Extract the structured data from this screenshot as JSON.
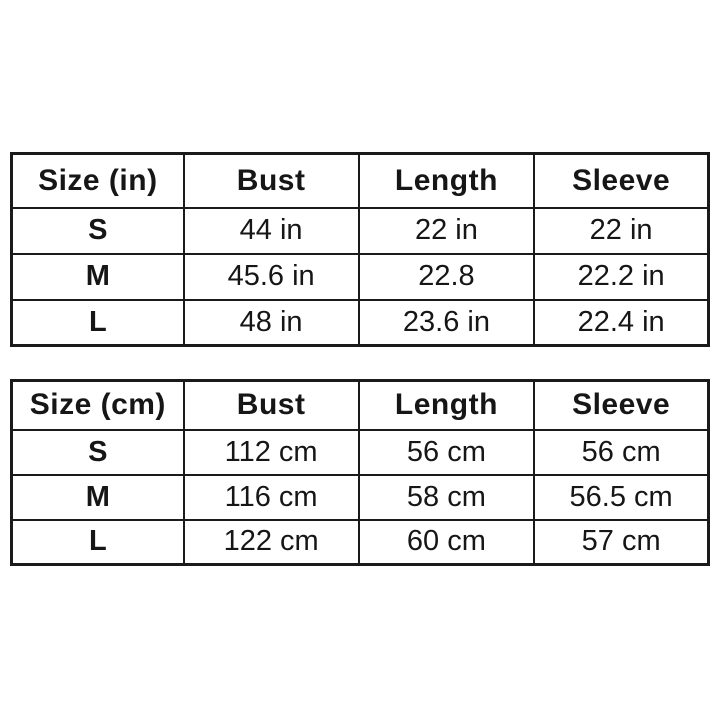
{
  "colors": {
    "background": "#ffffff",
    "text": "#161616",
    "border": "#1a1a1a"
  },
  "tables": [
    {
      "name": "size-table-inches",
      "headers": [
        "Size (in)",
        "Bust",
        "Length",
        "Sleeve"
      ],
      "rows": [
        {
          "size": "S",
          "values": [
            "44 in",
            "22 in",
            "22 in"
          ]
        },
        {
          "size": "M",
          "values": [
            "45.6 in",
            "22.8",
            "22.2 in"
          ]
        },
        {
          "size": "L",
          "values": [
            "48 in",
            "23.6 in",
            "22.4 in"
          ]
        }
      ]
    },
    {
      "name": "size-table-cm",
      "headers": [
        "Size (cm)",
        "Bust",
        "Length",
        "Sleeve"
      ],
      "rows": [
        {
          "size": "S",
          "values": [
            "112 cm",
            "56 cm",
            "56 cm"
          ]
        },
        {
          "size": "M",
          "values": [
            "116 cm",
            "58 cm",
            "56.5 cm"
          ]
        },
        {
          "size": "L",
          "values": [
            "122 cm",
            "60 cm",
            "57 cm"
          ]
        }
      ]
    }
  ],
  "chart_data": [
    {
      "type": "table",
      "title": "Size (in)",
      "columns": [
        "Size (in)",
        "Bust",
        "Length",
        "Sleeve"
      ],
      "rows": [
        [
          "S",
          "44 in",
          "22 in",
          "22 in"
        ],
        [
          "M",
          "45.6 in",
          "22.8",
          "22.2 in"
        ],
        [
          "L",
          "48 in",
          "23.6 in",
          "22.4 in"
        ]
      ]
    },
    {
      "type": "table",
      "title": "Size (cm)",
      "columns": [
        "Size (cm)",
        "Bust",
        "Length",
        "Sleeve"
      ],
      "rows": [
        [
          "S",
          "112 cm",
          "56 cm",
          "56 cm"
        ],
        [
          "M",
          "116 cm",
          "58 cm",
          "56.5 cm"
        ],
        [
          "L",
          "122 cm",
          "60 cm",
          "57 cm"
        ]
      ]
    }
  ]
}
